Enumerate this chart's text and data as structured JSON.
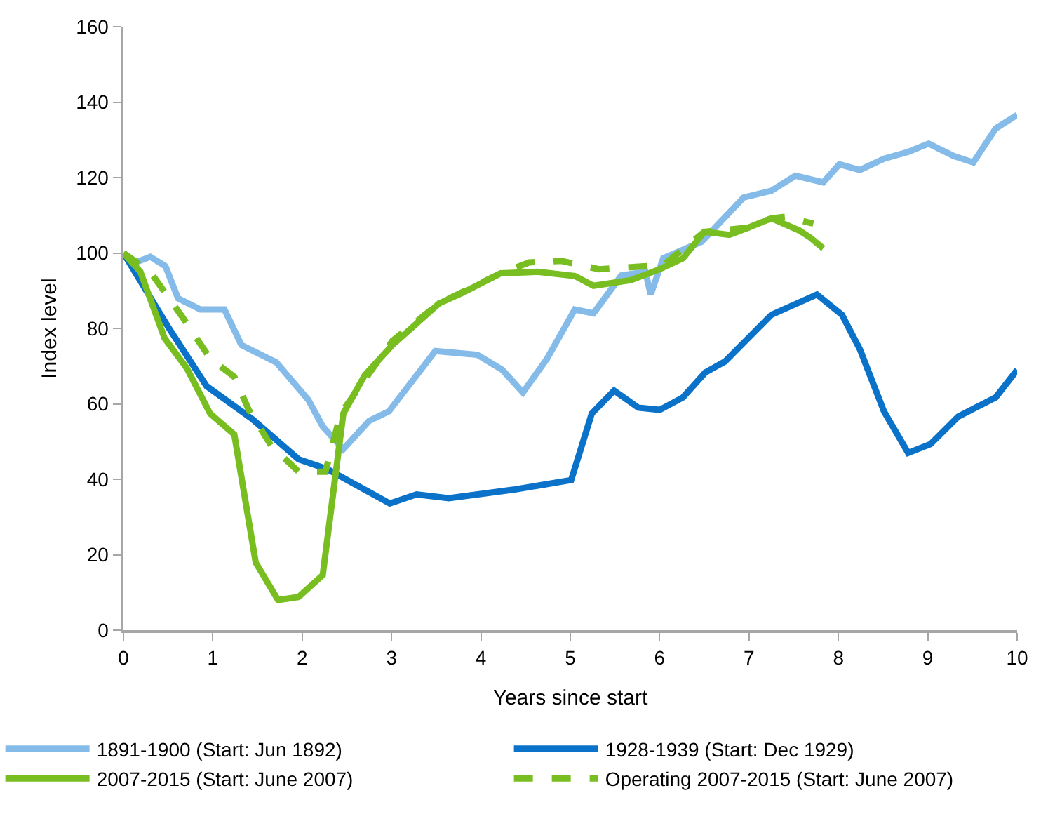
{
  "chart_data": {
    "type": "line",
    "xlabel": "Years since start",
    "ylabel": "Index level",
    "xlim": [
      0,
      10
    ],
    "xticks": [
      0,
      1,
      2,
      3,
      4,
      5,
      6,
      7,
      8,
      9,
      10
    ],
    "ylim": [
      0,
      160
    ],
    "yticks": [
      0,
      20,
      40,
      60,
      80,
      100,
      120,
      140,
      160
    ],
    "grid": false,
    "legend": "bottom",
    "marker": "none",
    "series": [
      {
        "name": "1891-1900 (Start: Jun 1892)",
        "color": "#85bbe8",
        "line_style": "solid",
        "x": [
          0,
          0.08,
          0.3,
          0.47,
          0.61,
          0.86,
          1.13,
          1.32,
          1.71,
          2.07,
          2.23,
          2.46,
          2.75,
          2.97,
          3.49,
          3.96,
          4.24,
          4.47,
          4.74,
          5.05,
          5.26,
          5.57,
          5.84,
          5.9,
          6.04,
          6.47,
          6.94,
          7.25,
          7.52,
          7.83,
          8.01,
          8.24,
          8.51,
          8.78,
          9.01,
          9.29,
          9.51,
          9.76,
          10
        ],
        "values": [
          100,
          97,
          99,
          96.5,
          88,
          85,
          85,
          75.6,
          71,
          61,
          54,
          48,
          55.5,
          58,
          74,
          73,
          69,
          63,
          72,
          85,
          84,
          94,
          95,
          89,
          98.6,
          103,
          114.7,
          116.5,
          120.5,
          118.7,
          123.5,
          122,
          125,
          126.8,
          129,
          125.7,
          124,
          133,
          136.6
        ]
      },
      {
        "name": "1928-1939 (Start: Dec 1929)",
        "color": "#0a72c9",
        "line_style": "solid",
        "x": [
          0,
          0.5,
          0.93,
          1.44,
          1.96,
          2.28,
          2.98,
          3.28,
          3.64,
          4.38,
          5.01,
          5.24,
          5.49,
          5.76,
          6.0,
          6.26,
          6.51,
          6.73,
          7.25,
          7.76,
          8.04,
          8.24,
          8.51,
          8.78,
          9.03,
          9.34,
          9.76,
          10
        ],
        "values": [
          100,
          80.4,
          64.7,
          56,
          45.3,
          42.7,
          33.6,
          36,
          35,
          37.3,
          39.8,
          57.4,
          63.5,
          59,
          58.4,
          61.7,
          68.3,
          71.2,
          83.6,
          89,
          83.6,
          74.5,
          58,
          47,
          49.3,
          56.6,
          61.7,
          69
        ]
      },
      {
        "name": "2007-2015 (Start: June 2007)",
        "color": "#78be20",
        "line_style": "solid",
        "x": [
          0,
          0.19,
          0.46,
          0.71,
          0.97,
          1.24,
          1.48,
          1.73,
          1.96,
          2.23,
          2.46,
          2.7,
          3.01,
          3.53,
          3.8,
          4.22,
          4.63,
          5.05,
          5.26,
          5.68,
          6.0,
          6.26,
          6.5,
          6.78,
          6.99,
          7.25,
          7.56,
          7.69,
          7.83
        ],
        "values": [
          100,
          95,
          77.4,
          69.4,
          57.4,
          51.9,
          17.9,
          8,
          8.8,
          14.6,
          57.4,
          67.6,
          75.6,
          86.6,
          89.5,
          94.6,
          95,
          93.9,
          91.3,
          92.8,
          95.7,
          98.6,
          105.6,
          104.8,
          106.7,
          109.2,
          106,
          104,
          101.2
        ]
      },
      {
        "name": "Operating 2007-2015 (Start: June 2007)",
        "color": "#78be20",
        "line_style": "dashed",
        "x": [
          0,
          0.3,
          0.66,
          0.97,
          1.24,
          1.4,
          1.65,
          1.96,
          2.26,
          2.43,
          3.01,
          3.53,
          4.22,
          4.54,
          4.9,
          5.32,
          5.79,
          6.04,
          6.5,
          6.99,
          7.25,
          7.41,
          7.72
        ],
        "values": [
          100,
          95,
          83,
          72,
          67.2,
          58.5,
          49,
          42,
          42,
          57.4,
          76.7,
          86.6,
          94.6,
          97.5,
          97.9,
          95.7,
          96.4,
          96.8,
          105.6,
          106.7,
          109.2,
          109.6,
          107.8
        ]
      }
    ]
  }
}
